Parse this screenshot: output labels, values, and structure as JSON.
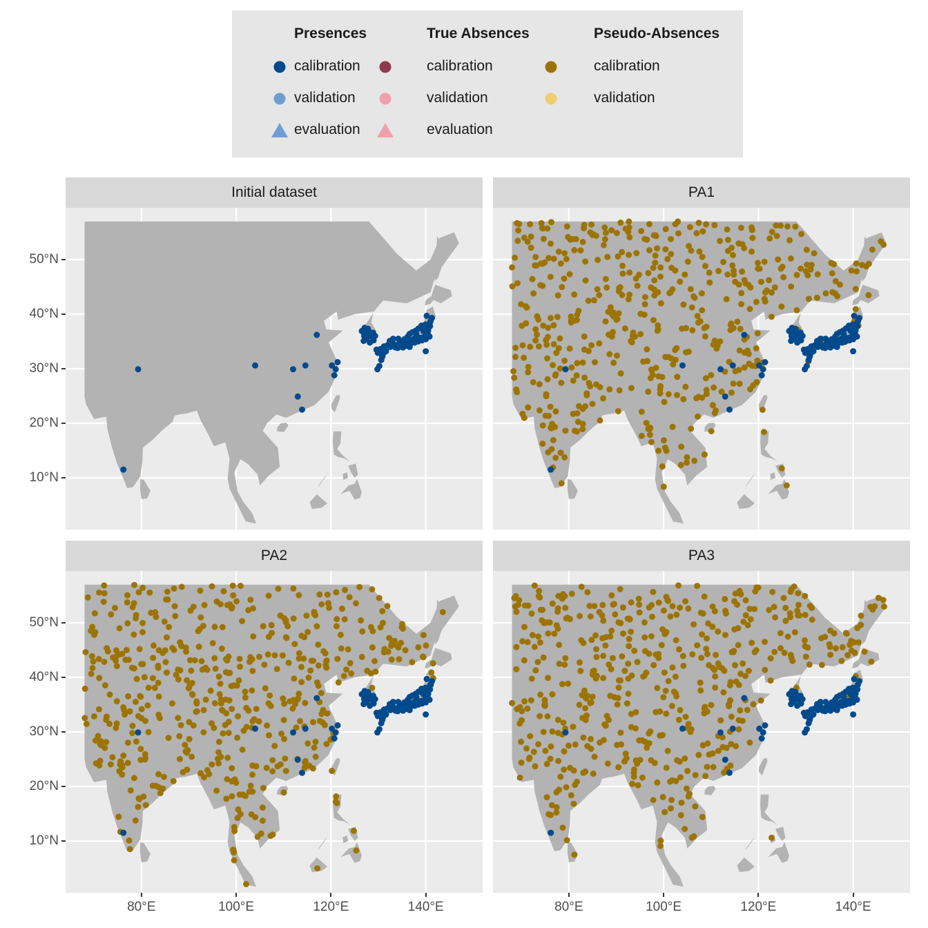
{
  "legend": {
    "groups": [
      {
        "title": "Presences",
        "items": [
          {
            "label": "calibration",
            "color": "#034a8c",
            "shape": "circle"
          },
          {
            "label": "validation",
            "color": "#6f9fd0",
            "shape": "circle"
          },
          {
            "label": "evaluation",
            "color": "#6f9fd0",
            "shape": "triangle"
          }
        ]
      },
      {
        "title": "True Absences",
        "items": [
          {
            "label": "calibration",
            "color": "#8e3b4f",
            "shape": "circle"
          },
          {
            "label": "validation",
            "color": "#eea1ad",
            "shape": "circle"
          },
          {
            "label": "evaluation",
            "color": "#eea1ad",
            "shape": "triangle"
          }
        ]
      },
      {
        "title": "Pseudo-Absences",
        "items": [
          {
            "label": "calibration",
            "color": "#9c7405",
            "shape": "circle"
          },
          {
            "label": "validation",
            "color": "#efcf6e",
            "shape": "circle"
          }
        ]
      }
    ]
  },
  "panels": [
    {
      "title": "Initial dataset",
      "pa_seed": 0
    },
    {
      "title": "PA1",
      "pa_seed": 11
    },
    {
      "title": "PA2",
      "pa_seed": 23
    },
    {
      "title": "PA3",
      "pa_seed": 37
    }
  ],
  "axes": {
    "y_ticks": [
      {
        "value": 10,
        "label": "10°N"
      },
      {
        "value": 20,
        "label": "20°N"
      },
      {
        "value": 30,
        "label": "30°N"
      },
      {
        "value": 40,
        "label": "40°N"
      },
      {
        "value": 50,
        "label": "50°N"
      }
    ],
    "x_ticks": [
      {
        "value": 80,
        "label": "80°E"
      },
      {
        "value": 100,
        "label": "100°E"
      },
      {
        "value": 120,
        "label": "120°E"
      },
      {
        "value": 140,
        "label": "140°E"
      }
    ],
    "lon_range": [
      64,
      152
    ],
    "lat_range": [
      0.5,
      59.5
    ]
  },
  "colors": {
    "land": "#b3b3b3",
    "panel_bg": "#ebebeb",
    "grid": "#ffffff",
    "presence": "#034a8c",
    "pseudo_absence": "#9c7405"
  },
  "presences": [
    [
      79.3,
      29.9
    ],
    [
      76.2,
      11.5
    ],
    [
      104.0,
      30.6
    ],
    [
      117.0,
      36.2
    ],
    [
      113.0,
      24.9
    ],
    [
      113.9,
      22.5
    ],
    [
      112.0,
      29.9
    ],
    [
      114.6,
      30.6
    ],
    [
      120.2,
      30.6
    ],
    [
      121.4,
      31.2
    ],
    [
      120.7,
      28.8
    ],
    [
      121.0,
      29.9
    ],
    [
      126.7,
      37.0
    ],
    [
      127.1,
      37.5
    ],
    [
      127.4,
      36.4
    ],
    [
      128.0,
      36.8
    ],
    [
      128.6,
      35.9
    ],
    [
      129.0,
      35.2
    ],
    [
      126.9,
      35.1
    ],
    [
      128.3,
      36.2
    ],
    [
      129.3,
      36.0
    ],
    [
      127.0,
      36.0
    ],
    [
      128.2,
      34.8
    ],
    [
      127.5,
      35.5
    ],
    [
      129.6,
      33.5
    ],
    [
      130.4,
      33.6
    ],
    [
      131.0,
      32.8
    ],
    [
      130.6,
      31.6
    ],
    [
      130.2,
      30.5
    ],
    [
      129.8,
      29.9
    ],
    [
      131.6,
      33.2
    ],
    [
      132.5,
      34.0
    ],
    [
      133.0,
      34.7
    ],
    [
      133.8,
      34.3
    ],
    [
      134.5,
      34.7
    ],
    [
      135.2,
      34.7
    ],
    [
      135.8,
      35.0
    ],
    [
      136.3,
      35.2
    ],
    [
      136.9,
      35.2
    ],
    [
      137.5,
      35.5
    ],
    [
      138.2,
      35.8
    ],
    [
      138.7,
      35.6
    ],
    [
      139.2,
      35.7
    ],
    [
      139.7,
      35.7
    ],
    [
      140.1,
      36.1
    ],
    [
      140.4,
      36.4
    ],
    [
      139.9,
      36.6
    ],
    [
      140.5,
      37.0
    ],
    [
      140.9,
      37.8
    ],
    [
      140.8,
      38.3
    ],
    [
      141.0,
      38.7
    ],
    [
      139.9,
      38.1
    ],
    [
      139.1,
      37.9
    ],
    [
      138.5,
      37.4
    ],
    [
      137.2,
      36.7
    ],
    [
      136.6,
      36.4
    ],
    [
      135.5,
      35.4
    ],
    [
      134.2,
      35.5
    ],
    [
      133.1,
      35.5
    ],
    [
      132.4,
      35.1
    ],
    [
      131.9,
      34.3
    ],
    [
      133.6,
      33.9
    ],
    [
      134.1,
      33.8
    ],
    [
      135.2,
      33.9
    ],
    [
      136.0,
      34.2
    ],
    [
      136.9,
      34.7
    ],
    [
      137.7,
      34.8
    ],
    [
      138.4,
      35.0
    ],
    [
      139.2,
      35.2
    ],
    [
      140.0,
      35.4
    ],
    [
      140.8,
      35.9
    ],
    [
      141.3,
      39.3
    ],
    [
      140.2,
      39.7
    ],
    [
      140.0,
      33.2
    ],
    [
      131.2,
      34.1
    ],
    [
      134.8,
      35.0
    ],
    [
      136.2,
      35.9
    ],
    [
      138.0,
      36.4
    ],
    [
      139.5,
      36.9
    ],
    [
      140.3,
      37.6
    ],
    [
      137.9,
      37.0
    ],
    [
      136.6,
      34.0
    ],
    [
      130.8,
      32.2
    ],
    [
      129.9,
      32.9
    ],
    [
      126.5,
      36.9
    ],
    [
      127.8,
      37.3
    ],
    [
      128.9,
      36.6
    ],
    [
      134.3,
      34.1
    ],
    [
      132.8,
      34.4
    ],
    [
      135.6,
      34.3
    ]
  ]
}
